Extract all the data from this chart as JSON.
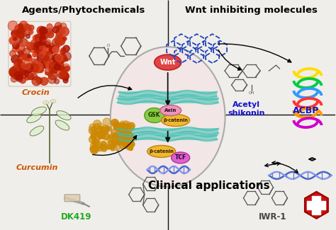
{
  "bg_color": "#f0eeea",
  "cell_fill": "#f2e6e6",
  "cell_edge": "#aaaaaa",
  "membrane_color": "#3dbfb0",
  "wnt_color": "#e04444",
  "wnt_edge": "#bb2222",
  "gsk_color": "#88cc44",
  "gsk_edge": "#559922",
  "axin_color": "#e898b8",
  "axin_edge": "#c06080",
  "bcatenin_color": "#f0b830",
  "bcatenin_edge": "#c08010",
  "tcf_color": "#e060cc",
  "tcf_edge": "#b030a0",
  "dna_color1": "#4466cc",
  "dna_color2": "#6688ee",
  "divider_color": "#111111",
  "arrow_color": "#111111",
  "hex_color": "#2244bb",
  "crocin_color": "#cc5500",
  "curcumin_color": "#cc5500",
  "dk419_color": "#22aa22",
  "iwr1_color": "#444444",
  "acetyl_color": "#1111cc",
  "acbp_color": "#1111cc",
  "title_tl": "Agents/Phytochemicals",
  "title_tr": "Wnt inhibiting molecules",
  "title_bot": "Clinical applications",
  "lbl_crocin": "Crocin",
  "lbl_curcumin": "Curcumin",
  "lbl_dk419": "DK419",
  "lbl_iwr1": "IWR-1",
  "lbl_acetyl": "Acetyl\nshikonin",
  "lbl_acbp": "ACBP",
  "saffron_colors": [
    "#cc3311",
    "#bb2200",
    "#dd4422",
    "#aa1100"
  ],
  "curcumin_color_fill": "#cc8800",
  "cross_color": "#cc1111",
  "syringe_color": "#ddccaa"
}
